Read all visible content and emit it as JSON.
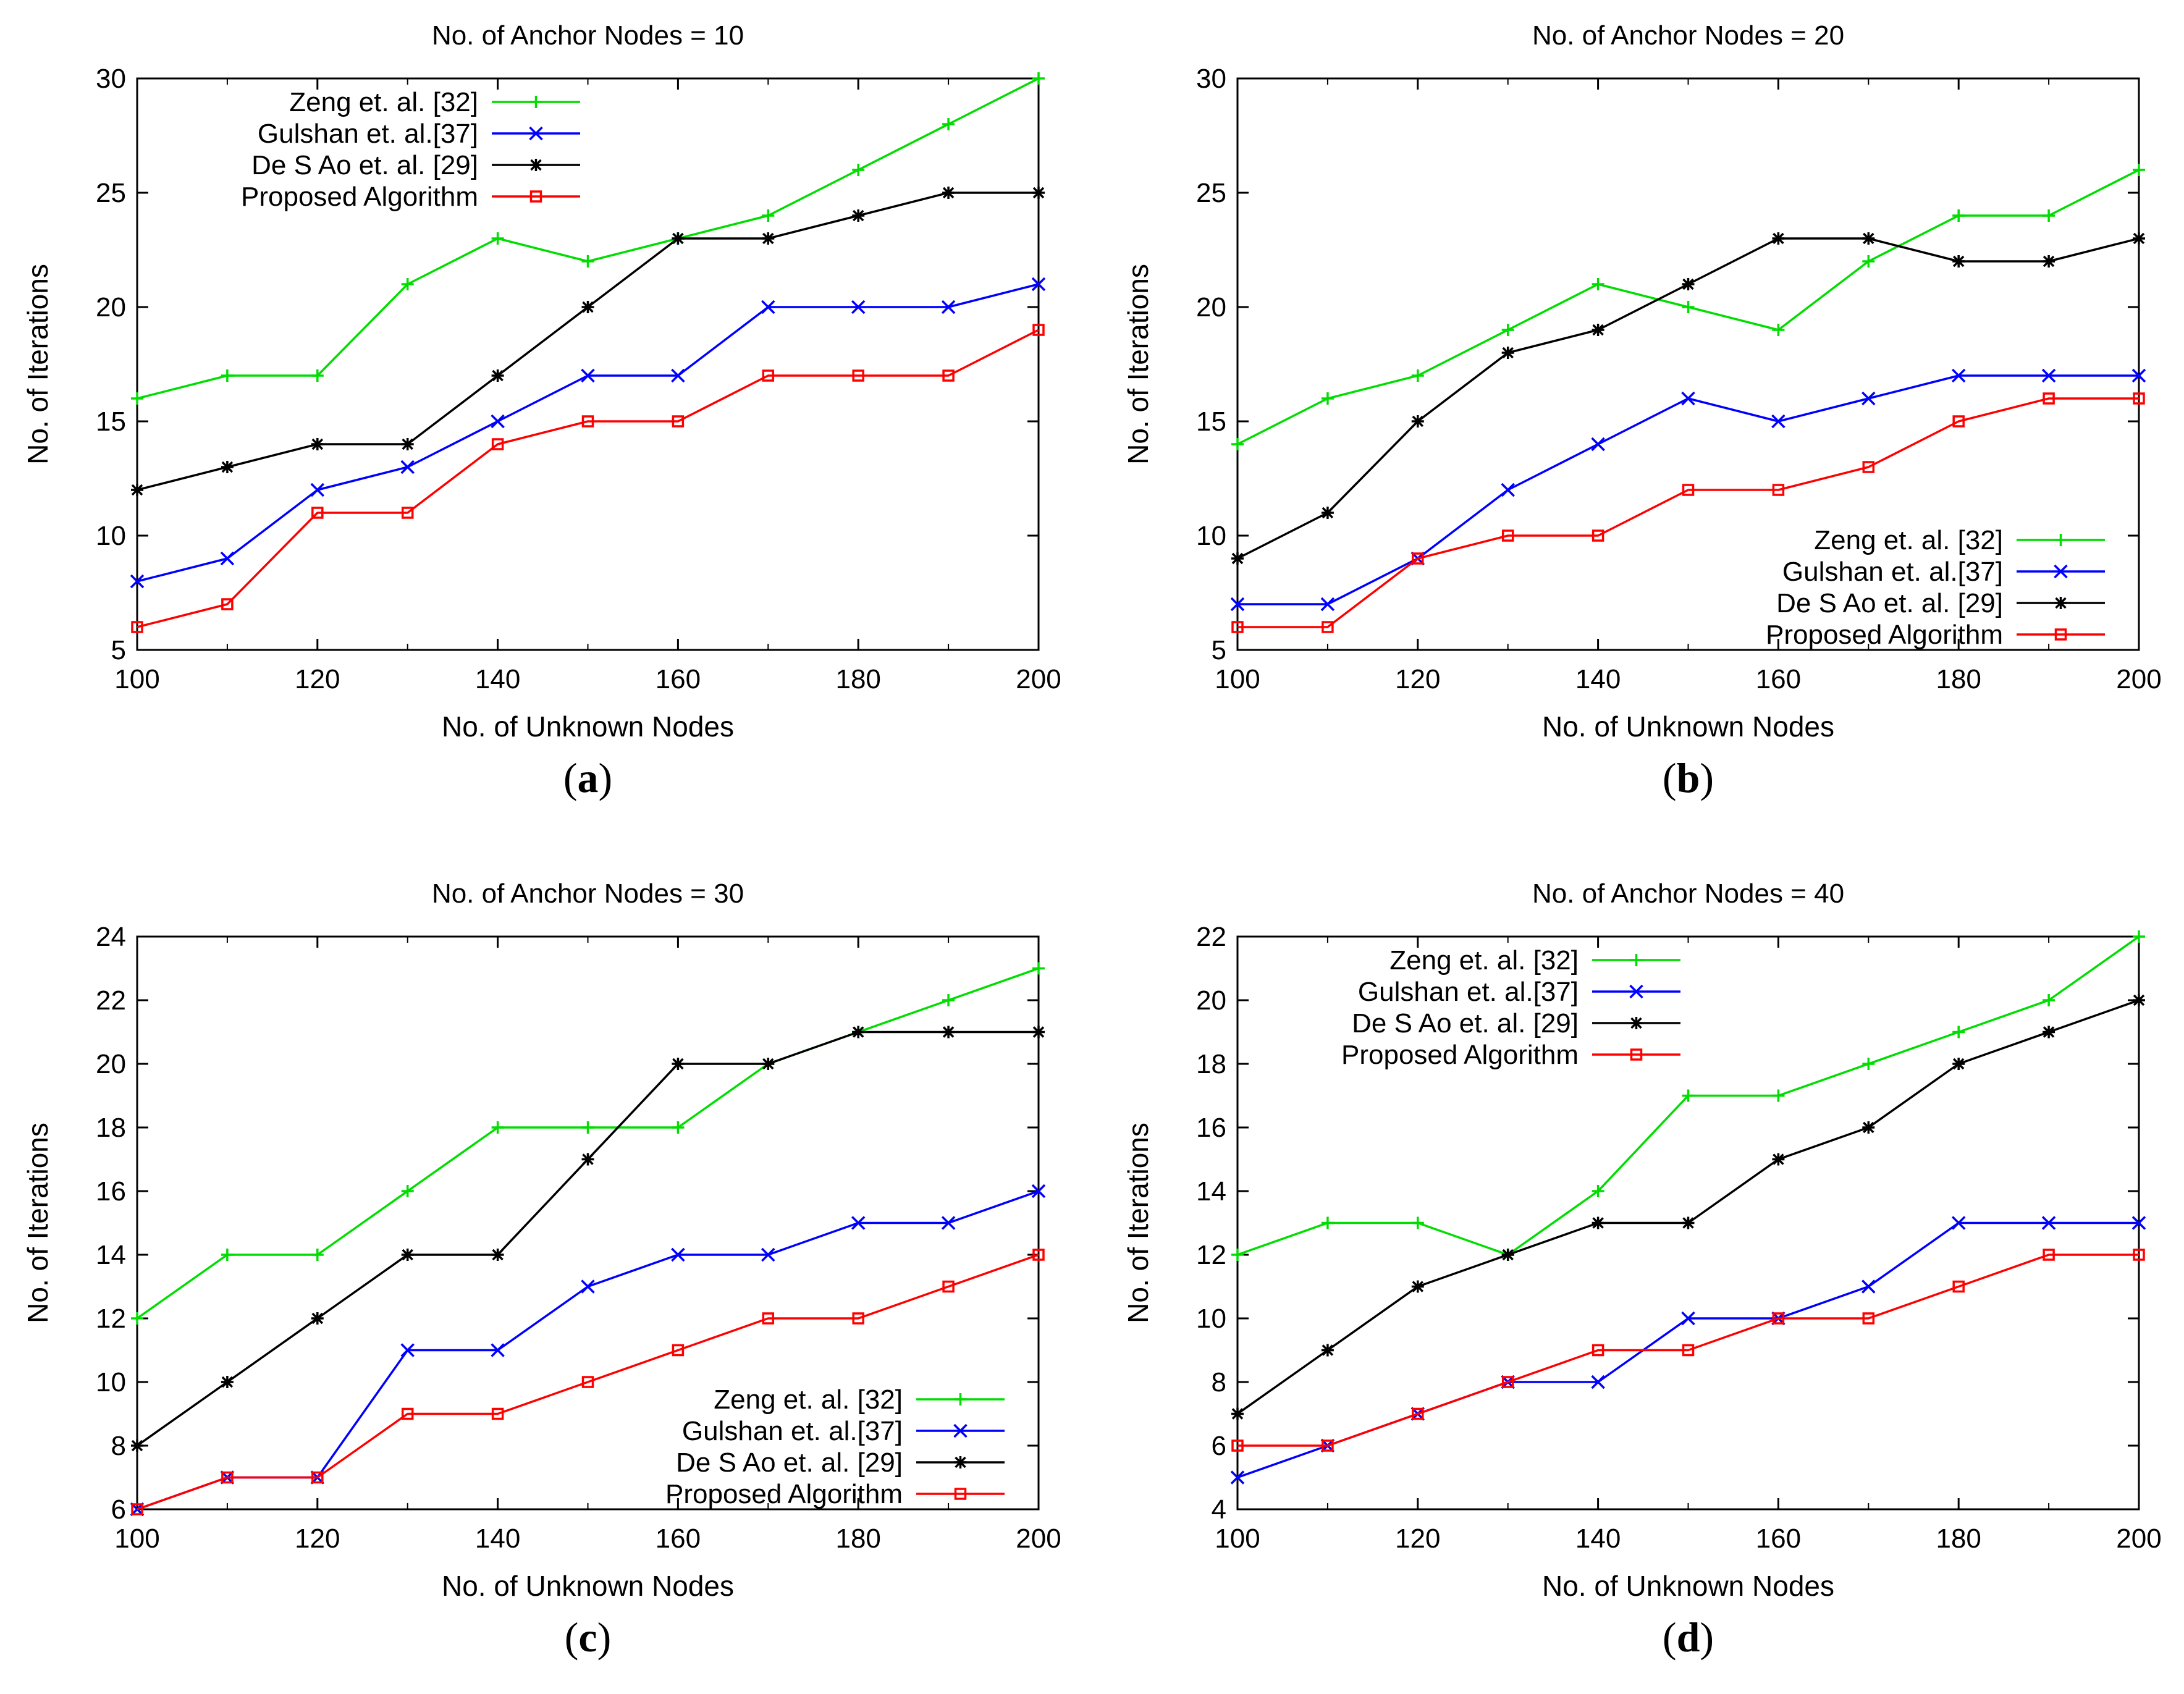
{
  "figure": {
    "subcaptions": [
      "a",
      "b",
      "c",
      "d"
    ]
  },
  "chart_data": [
    {
      "type": "line",
      "title": "No. of Anchor Nodes = 10",
      "xlabel": "No. of Unknown Nodes",
      "ylabel": "No. of Iterations",
      "xlim": [
        100,
        200
      ],
      "ylim": [
        5,
        30
      ],
      "xticks": [
        100,
        120,
        140,
        160,
        180,
        200
      ],
      "yticks": [
        5,
        10,
        15,
        20,
        25,
        30
      ],
      "legend_position": "top-left",
      "x": [
        100,
        110,
        120,
        130,
        140,
        150,
        160,
        170,
        180,
        190,
        200
      ],
      "series": [
        {
          "name": "Zeng et. al. [32]",
          "color": "#00dd00",
          "marker": "plus",
          "values": [
            16,
            17,
            17,
            21,
            23,
            22,
            23,
            24,
            26,
            28,
            30
          ]
        },
        {
          "name": "Gulshan et. al.[37]",
          "color": "#0000ff",
          "marker": "cross",
          "values": [
            8,
            9,
            12,
            13,
            15,
            17,
            17,
            20,
            20,
            20,
            21
          ]
        },
        {
          "name": "De S Ao et. al. [29]",
          "color": "#000000",
          "marker": "star",
          "values": [
            12,
            13,
            14,
            14,
            17,
            20,
            23,
            23,
            24,
            25,
            25
          ]
        },
        {
          "name": "Proposed Algorithm",
          "color": "#ff0000",
          "marker": "square",
          "values": [
            6,
            7,
            11,
            11,
            14,
            15,
            15,
            17,
            17,
            17,
            19
          ]
        }
      ]
    },
    {
      "type": "line",
      "title": "No. of Anchor Nodes = 20",
      "xlabel": "No. of Unknown Nodes",
      "ylabel": "No. of Iterations",
      "xlim": [
        100,
        200
      ],
      "ylim": [
        5,
        30
      ],
      "xticks": [
        100,
        120,
        140,
        160,
        180,
        200
      ],
      "yticks": [
        5,
        10,
        15,
        20,
        25,
        30
      ],
      "legend_position": "bottom-right",
      "x": [
        100,
        110,
        120,
        130,
        140,
        150,
        160,
        170,
        180,
        190,
        200
      ],
      "series": [
        {
          "name": "Zeng et. al. [32]",
          "color": "#00dd00",
          "marker": "plus",
          "values": [
            14,
            16,
            17,
            19,
            21,
            20,
            19,
            22,
            24,
            24,
            26
          ]
        },
        {
          "name": "Gulshan et. al.[37]",
          "color": "#0000ff",
          "marker": "cross",
          "values": [
            7,
            7,
            9,
            12,
            14,
            16,
            15,
            16,
            17,
            17,
            17
          ]
        },
        {
          "name": "De S Ao et. al. [29]",
          "color": "#000000",
          "marker": "star",
          "values": [
            9,
            11,
            15,
            18,
            19,
            21,
            23,
            23,
            22,
            22,
            23
          ]
        },
        {
          "name": "Proposed Algorithm",
          "color": "#ff0000",
          "marker": "square",
          "values": [
            6,
            6,
            9,
            10,
            10,
            12,
            12,
            13,
            15,
            16,
            16
          ]
        }
      ]
    },
    {
      "type": "line",
      "title": "No. of Anchor Nodes = 30",
      "xlabel": "No. of Unknown Nodes",
      "ylabel": "No. of Iterations",
      "xlim": [
        100,
        200
      ],
      "ylim": [
        6,
        24
      ],
      "xticks": [
        100,
        120,
        140,
        160,
        180,
        200
      ],
      "yticks": [
        6,
        8,
        10,
        12,
        14,
        16,
        18,
        20,
        22,
        24
      ],
      "legend_position": "bottom-right",
      "x": [
        100,
        110,
        120,
        130,
        140,
        150,
        160,
        170,
        180,
        190,
        200
      ],
      "series": [
        {
          "name": "Zeng et. al. [32]",
          "color": "#00dd00",
          "marker": "plus",
          "values": [
            12,
            14,
            14,
            16,
            18,
            18,
            18,
            20,
            21,
            22,
            23
          ]
        },
        {
          "name": "Gulshan et. al.[37]",
          "color": "#0000ff",
          "marker": "cross",
          "values": [
            6,
            7,
            7,
            11,
            11,
            13,
            14,
            14,
            15,
            15,
            16
          ]
        },
        {
          "name": "De S Ao et. al. [29]",
          "color": "#000000",
          "marker": "star",
          "values": [
            8,
            10,
            12,
            14,
            14,
            17,
            20,
            20,
            21,
            21,
            21
          ]
        },
        {
          "name": "Proposed Algorithm",
          "color": "#ff0000",
          "marker": "square",
          "values": [
            6,
            7,
            7,
            9,
            9,
            10,
            11,
            12,
            12,
            13,
            14
          ]
        }
      ]
    },
    {
      "type": "line",
      "title": "No. of Anchor Nodes = 40",
      "xlabel": "No. of Unknown Nodes",
      "ylabel": "No. of Iterations",
      "xlim": [
        100,
        200
      ],
      "ylim": [
        4,
        22
      ],
      "xticks": [
        100,
        120,
        140,
        160,
        180,
        200
      ],
      "yticks": [
        4,
        6,
        8,
        10,
        12,
        14,
        16,
        18,
        20,
        22
      ],
      "legend_position": "top-left",
      "x": [
        100,
        110,
        120,
        130,
        140,
        150,
        160,
        170,
        180,
        190,
        200
      ],
      "series": [
        {
          "name": "Zeng et. al. [32]",
          "color": "#00dd00",
          "marker": "plus",
          "values": [
            12,
            13,
            13,
            12,
            14,
            17,
            17,
            18,
            19,
            20,
            22
          ]
        },
        {
          "name": "Gulshan et. al.[37]",
          "color": "#0000ff",
          "marker": "cross",
          "values": [
            5,
            6,
            7,
            8,
            8,
            10,
            10,
            11,
            13,
            13,
            13
          ]
        },
        {
          "name": "De S Ao et. al. [29]",
          "color": "#000000",
          "marker": "star",
          "values": [
            7,
            9,
            11,
            12,
            13,
            13,
            15,
            16,
            18,
            19,
            20
          ]
        },
        {
          "name": "Proposed Algorithm",
          "color": "#ff0000",
          "marker": "square",
          "values": [
            6,
            6,
            7,
            8,
            9,
            9,
            10,
            10,
            11,
            12,
            12
          ]
        }
      ]
    }
  ]
}
